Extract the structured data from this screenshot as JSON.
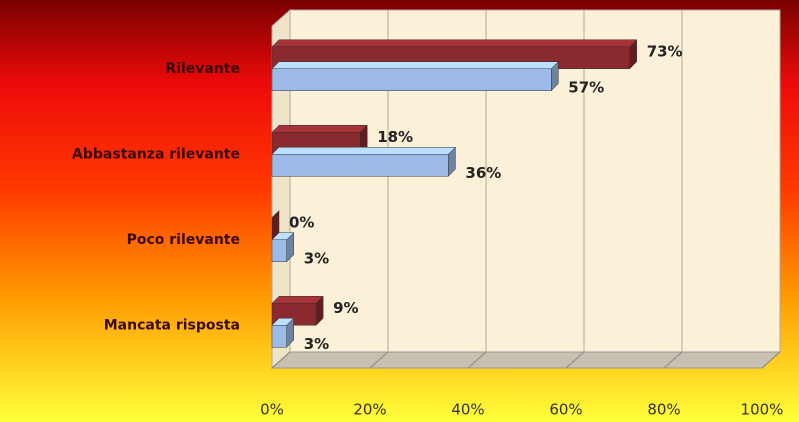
{
  "chart_data": {
    "type": "hbar3d",
    "categories": [
      "Rilevante",
      "Abbastanza rilevante",
      "Poco rilevante",
      "Mancata risposta"
    ],
    "series": [
      {
        "color": "#8b2a2e",
        "values": [
          73,
          18,
          0,
          9
        ],
        "value_labels": [
          "73%",
          "18%",
          "0%",
          "9%"
        ]
      },
      {
        "color": "#9dbbe8",
        "values": [
          57,
          36,
          3,
          3
        ],
        "value_labels": [
          "57%",
          "36%",
          "3%",
          "3%"
        ]
      }
    ],
    "xlim": [
      0,
      100
    ],
    "xticks": [
      {
        "value": 0,
        "label": "0%"
      },
      {
        "value": 20,
        "label": "20%"
      },
      {
        "value": 40,
        "label": "40%"
      },
      {
        "value": 60,
        "label": "60%"
      },
      {
        "value": 80,
        "label": "80%"
      },
      {
        "value": 100,
        "label": "100%"
      }
    ],
    "grid": true
  }
}
